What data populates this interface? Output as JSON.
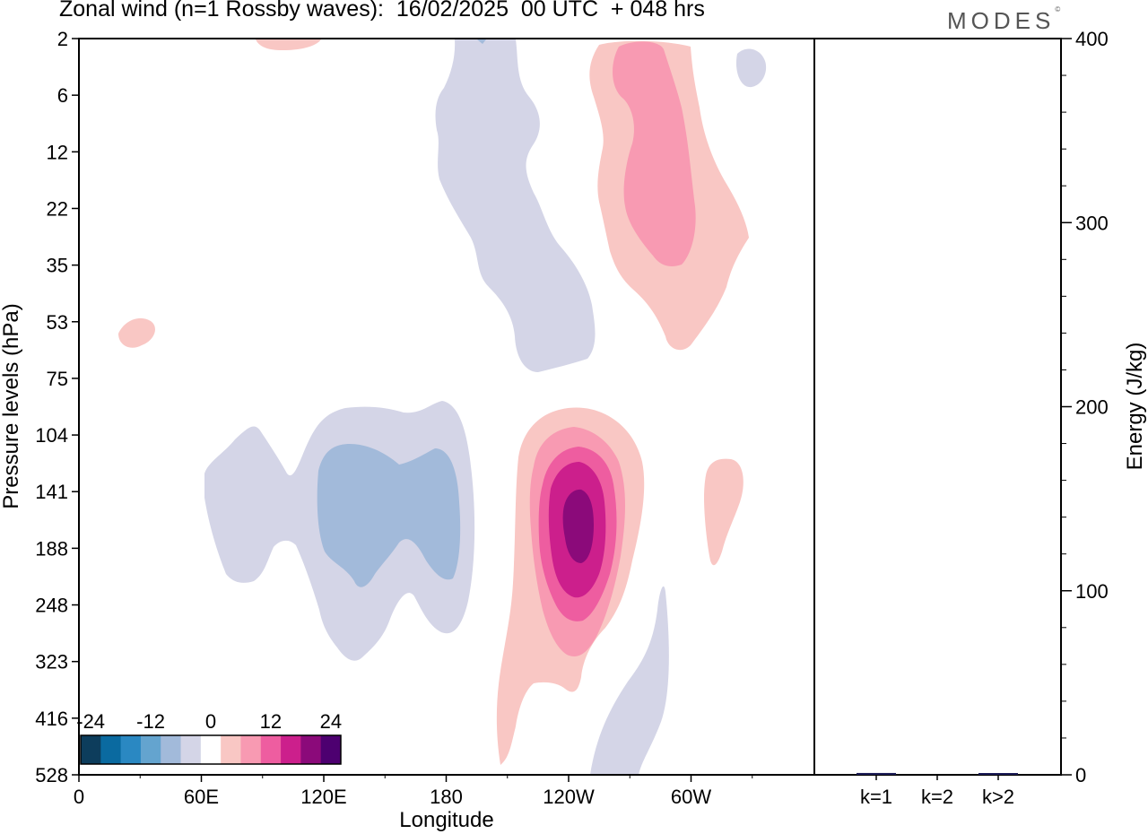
{
  "header": {
    "title": "Zonal wind (n=1 Rossby waves):  16/02/2025  00 UTC  + 048 hrs",
    "logo": "MODES",
    "logo_mark": "©"
  },
  "chart_data": [
    {
      "type": "heatmap",
      "title": "Zonal wind (n=1 Rossby waves):  16/02/2025  00 UTC  + 048 hrs",
      "xlabel": "Longitude",
      "ylabel": "Pressure levels (hPa)",
      "x_ticks": [
        "0",
        "60E",
        "120E",
        "180",
        "120W",
        "60W"
      ],
      "y_ticks": [
        "2",
        "6",
        "12",
        "22",
        "35",
        "53",
        "75",
        "104",
        "141",
        "188",
        "248",
        "323",
        "416",
        "528"
      ],
      "colorbar": {
        "tick_labels": [
          "-24",
          "-12",
          "0",
          "12",
          "24"
        ],
        "levels": [
          -28,
          -24,
          -20,
          -16,
          -12,
          -8,
          -4,
          4,
          8,
          12,
          16,
          20,
          24,
          28
        ],
        "colors": [
          "#0d3d5c",
          "#0a6aa0",
          "#2a88c2",
          "#64a4cf",
          "#a2bada",
          "#d4d5e7",
          "#ffffff",
          "#f9c7c4",
          "#f89ab2",
          "#ee5da0",
          "#cc1f8c",
          "#8b0a7a",
          "#4d0070"
        ]
      },
      "features": [
        {
          "name": "stratospheric-negative-tongue",
          "sign": "negative",
          "peak_level": -4,
          "lon_range": [
            "180",
            "120W"
          ],
          "level_range": [
            "2",
            "75"
          ]
        },
        {
          "name": "stratospheric-positive-core",
          "sign": "positive",
          "peak_level": 8,
          "lon_range": [
            "120W",
            "60W"
          ],
          "level_range": [
            "2",
            "53"
          ]
        },
        {
          "name": "upper-tropospheric-negative-core",
          "sign": "negative",
          "peak_level": -8,
          "lon_range": [
            "60E",
            "180"
          ],
          "level_range": [
            "104",
            "323"
          ]
        },
        {
          "name": "upper-tropospheric-positive-core",
          "sign": "positive",
          "peak_level": 24,
          "lon_range": [
            "180",
            "60W"
          ],
          "level_range": [
            "104",
            "528"
          ]
        }
      ]
    },
    {
      "type": "bar",
      "ylabel": "Energy (J/kg)",
      "ylim": [
        0,
        400
      ],
      "y_ticks": [
        "0",
        "100",
        "200",
        "300",
        "400"
      ],
      "categories": [
        "k=1",
        "k=2",
        "k>2"
      ],
      "values": [
        1,
        0,
        0.5
      ],
      "bar_color": "#1a1a55"
    }
  ]
}
